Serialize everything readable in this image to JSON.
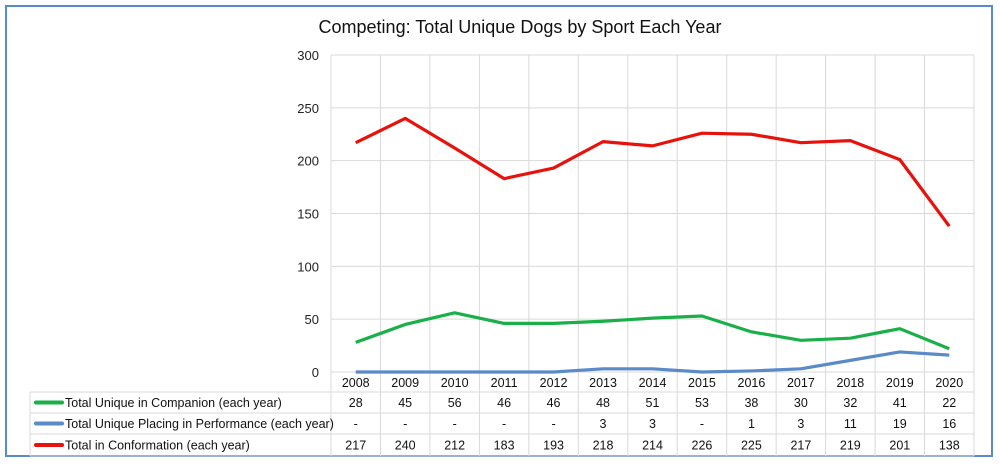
{
  "chart_data": {
    "type": "line",
    "title": "Competing: Total Unique Dogs by Sport Each Year",
    "categories": [
      "2008",
      "2009",
      "2010",
      "2011",
      "2012",
      "2013",
      "2014",
      "2015",
      "2016",
      "2017",
      "2018",
      "2019",
      "2020"
    ],
    "ylim": [
      0,
      300
    ],
    "yticks": [
      0,
      50,
      100,
      150,
      200,
      250,
      300
    ],
    "grid": true,
    "legend": "data-table-bottom",
    "missing_label": "-",
    "series": [
      {
        "name": "Total Unique in Companion (each year)",
        "color": "#19b04a",
        "values": [
          28,
          45,
          56,
          46,
          46,
          48,
          51,
          53,
          38,
          30,
          32,
          41,
          22
        ]
      },
      {
        "name": "Total Unique Placing in Performance (each year)",
        "color": "#5b8ac8",
        "values": [
          null,
          null,
          null,
          null,
          null,
          3,
          3,
          null,
          1,
          3,
          11,
          19,
          16
        ]
      },
      {
        "name": "Total in Conformation (each year)",
        "color": "#e8120c",
        "values": [
          217,
          240,
          212,
          183,
          193,
          218,
          214,
          226,
          225,
          217,
          219,
          201,
          138
        ]
      }
    ]
  },
  "frame_color": "#5b8ac8"
}
